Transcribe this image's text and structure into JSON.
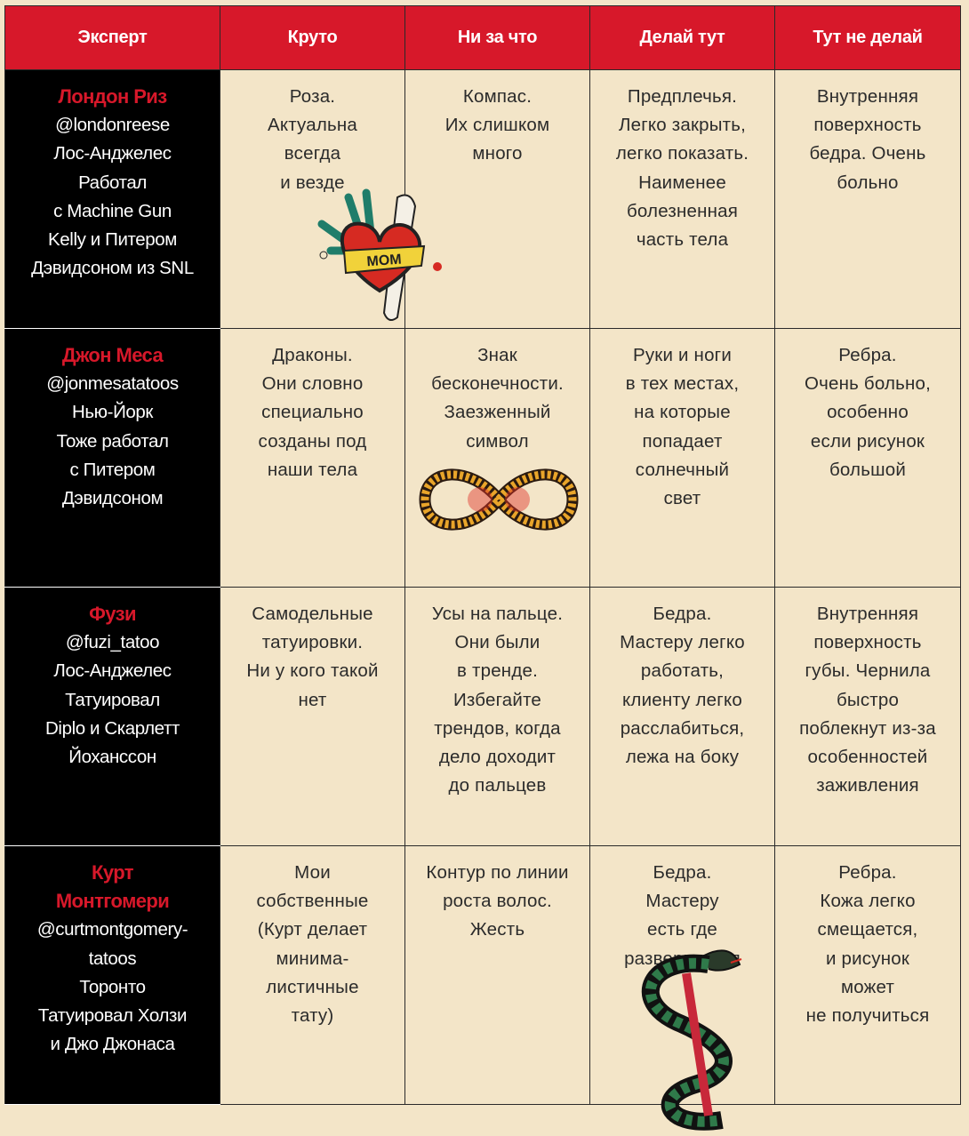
{
  "headers": [
    "Эксперт",
    "Круто",
    "Ни за что",
    "Делай тут",
    "Тут не делай"
  ],
  "rows": [
    {
      "name": "Лондон Риз",
      "info": "@londonreese\nЛос-Анджелес\nРаботал\nс Machine Gun\nKelly и Питером\nДэвидсоном из SNL",
      "cells": [
        "Роза.\nАктуальна\nвсегда\nи везде",
        "Компас.\nИх слишком\nмного",
        "Предплечья.\nЛегко закрыть,\nлегко показать.\nНаименее\nболезненная\nчасть тела",
        "Внутренняя\nповерхность\nбедра. Очень\nбольно"
      ]
    },
    {
      "name": "Джон Меса",
      "info": "@jonmesatatoos\nНью-Йорк\nТоже работал\nс Питером\nДэвидсоном",
      "cells": [
        "Драконы.\nОни словно\nспециально\nсозданы под\nнаши тела",
        "Знак\nбесконечности.\nЗаезженный\nсимвол",
        "Руки и ноги\nв тех местах,\nна которые\nпопадает\nсолнечный\nсвет",
        "Ребра.\nОчень больно,\nособенно\nесли рисунок\nбольшой"
      ]
    },
    {
      "name": "Фузи",
      "info": "@fuzi_tatoo\nЛос-Анджелес\nТатуировал\nDiplo и Скарлетт\nЙоханссон",
      "cells": [
        "Самодельные\nтатуировки.\nНи у кого такой\nнет",
        "Усы на пальце.\nОни были\nв тренде.\nИзбегайте\nтрендов, когда\nдело доходит\nдо пальцев",
        "Бедра.\nМастеру легко\nработать,\nклиенту легко\nрасслабиться,\nлежа на боку",
        "Внутренняя\nповерхность\nгубы. Чернила\nбыстро\nпоблекнут из-за\nособенностей\nзаживления"
      ]
    },
    {
      "name": "Курт\nМонтгомери",
      "info": "@curtmontgomery-\ntatoos\nТоронто\nТатуировал Холзи\nи Джо Джонаса",
      "cells": [
        "Мои\nсобственные\n(Курт делает\nминима-\nлистичные\nтату)",
        "Контур по линии\nроста волос.\nЖесть",
        "Бедра.\nМастеру\nесть где\nразвернуться",
        "Ребра.\nКожа легко\nсмещается,\nи рисунок\nможет\nне получиться"
      ]
    }
  ],
  "illustrations": {
    "heart_banner": "MOM",
    "heart-icon": "heart-tattoo",
    "infinity-icon": "rope-infinity",
    "snake-icon": "snake-tattoo"
  },
  "colors": {
    "accent": "#d7182a",
    "background": "#f3e5c8",
    "expert_bg": "#000000"
  }
}
